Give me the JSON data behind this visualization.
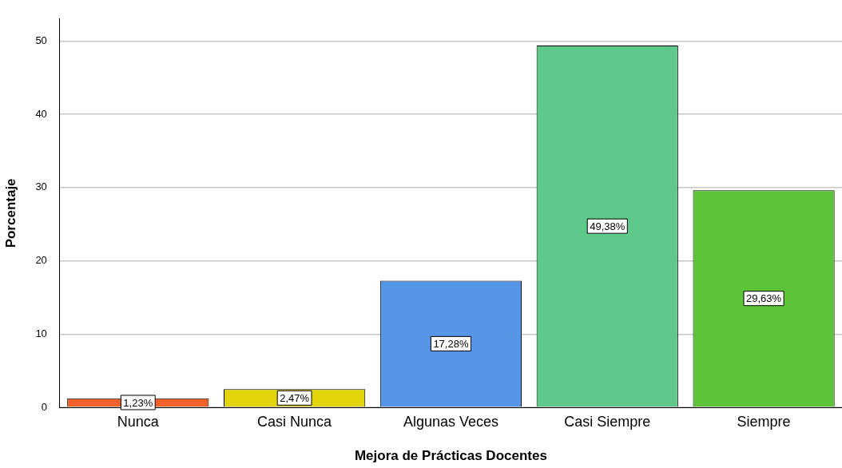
{
  "chart_data": {
    "type": "bar",
    "xlabel": "Mejora de Prácticas Docentes",
    "ylabel": "Porcentaje",
    "categories": [
      "Nunca",
      "Casi Nunca",
      "Algunas Veces",
      "Casi Siempre",
      "Siempre"
    ],
    "values": [
      1.23,
      2.47,
      17.28,
      49.38,
      29.63
    ],
    "colors": [
      "#f0622a",
      "#e2d40a",
      "#5596e6",
      "#5ec98b",
      "#5dc43a"
    ],
    "value_labels": [
      "1,23%",
      "2,47%",
      "17,28%",
      "49,38%",
      "29,63%"
    ],
    "ylim": [
      0,
      53
    ],
    "yticks": [
      0,
      10,
      20,
      30,
      40,
      50
    ],
    "grid": "y",
    "legend": false
  }
}
